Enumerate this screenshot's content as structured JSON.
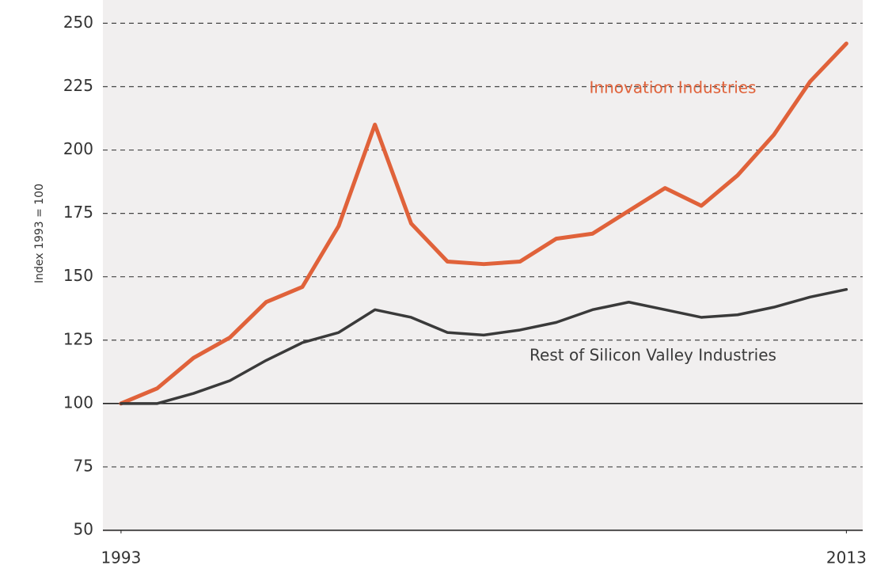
{
  "chart_data": {
    "type": "line",
    "y_label": "Index 1993 = 100",
    "x": [
      1993,
      1994,
      1995,
      1996,
      1997,
      1998,
      1999,
      2000,
      2001,
      2002,
      2003,
      2004,
      2005,
      2006,
      2007,
      2008,
      2009,
      2010,
      2011,
      2012,
      2013
    ],
    "series": [
      {
        "name": "Innovation Industries",
        "color": "#e0623a",
        "values": [
          100,
          106,
          118,
          126,
          140,
          146,
          170,
          210,
          171,
          156,
          155,
          156,
          165,
          167,
          176,
          185,
          178,
          190,
          206,
          227,
          242
        ]
      },
      {
        "name": "Rest of Silicon Valley Industries",
        "color": "#3a3a3a",
        "values": [
          100,
          100,
          104,
          109,
          117,
          124,
          128,
          137,
          134,
          128,
          127,
          129,
          132,
          137,
          140,
          137,
          134,
          135,
          138,
          142,
          145
        ]
      }
    ],
    "xlim": [
      1992.5,
      2013.45
    ],
    "xticks": [
      1993,
      2013
    ],
    "ylim": [
      50,
      252
    ],
    "yticks": [
      50,
      75,
      100,
      125,
      150,
      175,
      200,
      225,
      250
    ],
    "baseline": 100,
    "grid": true
  }
}
